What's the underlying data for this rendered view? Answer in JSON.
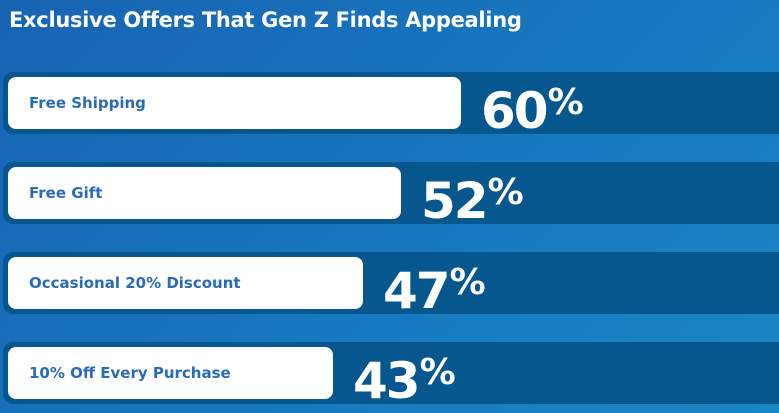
{
  "chart_data": {
    "type": "bar",
    "orientation": "horizontal",
    "title": "Exclusive Offers That Gen Z Finds Appealing",
    "categories": [
      "Free Shipping",
      "Free Gift",
      "Occasional 20% Discount",
      "10% Off Every Purchase"
    ],
    "values": [
      60,
      52,
      47,
      43
    ],
    "unit": "%",
    "xlim": [
      0,
      100
    ],
    "grid": false,
    "legend": "none"
  },
  "colors": {
    "background": "#1770bb",
    "track": "#06578e",
    "bar": "#ffffff",
    "label_text": "#2a6bb8",
    "value_text": "#ffffff"
  }
}
